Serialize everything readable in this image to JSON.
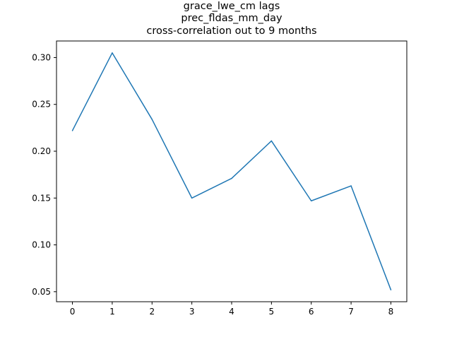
{
  "chart_data": {
    "type": "line",
    "title_lines": [
      "grace_lwe_cm lags",
      "prec_fldas_mm_day",
      "cross-correlation out to 9 months"
    ],
    "xlabel": "",
    "ylabel": "",
    "x": [
      0,
      1,
      2,
      3,
      4,
      5,
      6,
      7,
      8
    ],
    "series": [
      {
        "values": [
          0.222,
          0.305,
          0.234,
          0.15,
          0.171,
          0.211,
          0.147,
          0.163,
          0.052
        ]
      }
    ],
    "xlim": [
      -0.4,
      8.4
    ],
    "ylim": [
      0.0393,
      0.3177
    ],
    "xticks": [
      0,
      1,
      2,
      3,
      4,
      5,
      6,
      7,
      8
    ],
    "xtick_labels": [
      "0",
      "1",
      "2",
      "3",
      "4",
      "5",
      "6",
      "7",
      "8"
    ],
    "yticks": [
      0.05,
      0.1,
      0.15,
      0.2,
      0.25,
      0.3
    ],
    "ytick_labels": [
      "0.05",
      "0.10",
      "0.15",
      "0.20",
      "0.25",
      "0.30"
    ],
    "grid": false,
    "legend": "none",
    "line_color": "#1f77b4",
    "axes_color": "#000000"
  }
}
